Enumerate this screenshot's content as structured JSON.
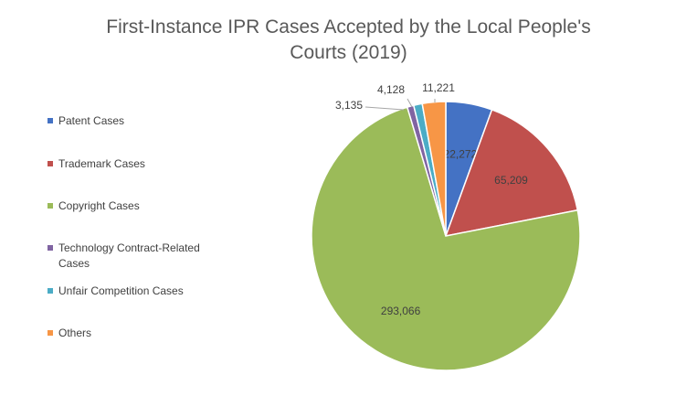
{
  "chart_data": {
    "type": "pie",
    "title": [
      "First-Instance IPR Cases Accepted by the Local People's",
      "Courts (2019)"
    ],
    "start_angle_deg": 0,
    "direction": "clockwise",
    "legend_position": "left",
    "slices": [
      {
        "name": "Patent Cases",
        "value": 22272,
        "label": "22,272",
        "color": "#4472c4"
      },
      {
        "name": "Trademark Cases",
        "value": 65209,
        "label": "65,209",
        "color": "#c0504d"
      },
      {
        "name": "Copyright Cases",
        "value": 293066,
        "label": "293,066",
        "color": "#9bbb59"
      },
      {
        "name": "Technology Contract-Related Cases",
        "value": 3135,
        "label": "3,135",
        "color": "#8064a2"
      },
      {
        "name": "Unfair Competition Cases",
        "value": 4128,
        "label": "4,128",
        "color": "#4bacc6"
      },
      {
        "name": "Others",
        "value": 11221,
        "label": "11,221",
        "color": "#f79646"
      }
    ]
  }
}
